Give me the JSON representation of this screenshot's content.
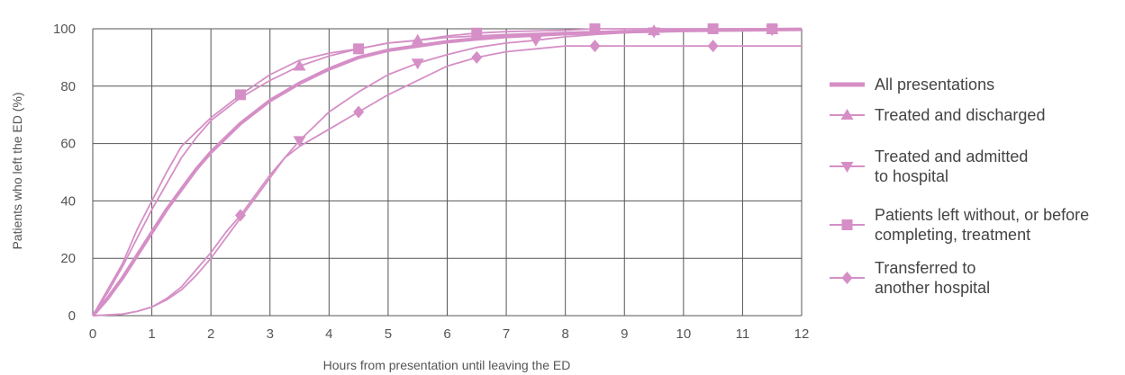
{
  "chart_data": {
    "type": "line",
    "xlabel": "Hours from presentation until leaving the ED",
    "ylabel": "Patients who left the ED (%)",
    "xlim": [
      0,
      12
    ],
    "ylim": [
      0,
      100
    ],
    "x_ticks": [
      "0",
      "1",
      "2",
      "3",
      "4",
      "5",
      "6",
      "7",
      "8",
      "9",
      "10",
      "11",
      "12"
    ],
    "y_ticks": [
      "0",
      "20",
      "40",
      "60",
      "80",
      "100"
    ],
    "grid": true,
    "legend_position": "right",
    "series": [
      {
        "name": "All presentations",
        "marker": "none",
        "emphasis": "thick",
        "points": [
          [
            0,
            0
          ],
          [
            0.25,
            6
          ],
          [
            0.5,
            13
          ],
          [
            0.75,
            21
          ],
          [
            1,
            29
          ],
          [
            1.25,
            37
          ],
          [
            1.5,
            44
          ],
          [
            1.75,
            51
          ],
          [
            2,
            57
          ],
          [
            2.5,
            67
          ],
          [
            3,
            75
          ],
          [
            3.5,
            81
          ],
          [
            4,
            86
          ],
          [
            4.5,
            90
          ],
          [
            5,
            92.5
          ],
          [
            5.5,
            94
          ],
          [
            6,
            95.5
          ],
          [
            6.5,
            96.5
          ],
          [
            7,
            97.3
          ],
          [
            8,
            98.3
          ],
          [
            9,
            99
          ],
          [
            10,
            99.4
          ],
          [
            11,
            99.6
          ],
          [
            12,
            99.8
          ]
        ]
      },
      {
        "name": "Treated and discharged",
        "marker": "triangle-up",
        "marker_x": [
          3.5,
          5.5,
          9.5,
          11.5
        ],
        "points": [
          [
            0,
            0
          ],
          [
            0.25,
            8
          ],
          [
            0.5,
            17
          ],
          [
            0.75,
            27
          ],
          [
            1,
            37
          ],
          [
            1.25,
            46
          ],
          [
            1.5,
            55
          ],
          [
            1.75,
            62
          ],
          [
            2,
            68
          ],
          [
            2.5,
            76
          ],
          [
            3,
            82
          ],
          [
            3.5,
            87
          ],
          [
            4,
            90.5
          ],
          [
            4.5,
            93
          ],
          [
            5,
            95
          ],
          [
            5.5,
            96
          ],
          [
            6,
            97
          ],
          [
            7,
            98
          ],
          [
            8,
            98.7
          ],
          [
            9,
            99.2
          ],
          [
            10,
            99.5
          ],
          [
            11,
            99.7
          ],
          [
            12,
            99.8
          ]
        ]
      },
      {
        "name": "Treated and admitted to hospital",
        "legend_lines": [
          "Treated and admitted",
          "to hospital"
        ],
        "marker": "triangle-down",
        "marker_x": [
          3.5,
          5.5,
          7.5,
          9.5,
          11.5
        ],
        "points": [
          [
            0,
            0
          ],
          [
            0.5,
            0.5
          ],
          [
            0.75,
            1.5
          ],
          [
            1,
            3
          ],
          [
            1.25,
            5.5
          ],
          [
            1.5,
            9
          ],
          [
            1.75,
            14
          ],
          [
            2,
            20
          ],
          [
            2.25,
            27
          ],
          [
            2.5,
            34
          ],
          [
            2.75,
            41
          ],
          [
            3,
            48
          ],
          [
            3.25,
            55
          ],
          [
            3.5,
            61
          ],
          [
            3.75,
            66
          ],
          [
            4,
            71
          ],
          [
            4.5,
            78
          ],
          [
            5,
            84
          ],
          [
            5.5,
            88
          ],
          [
            6,
            91
          ],
          [
            6.5,
            93.5
          ],
          [
            7,
            95
          ],
          [
            7.5,
            96
          ],
          [
            8,
            97.2
          ],
          [
            8.5,
            98
          ],
          [
            9,
            98.6
          ],
          [
            10,
            99.2
          ],
          [
            11,
            99.5
          ],
          [
            12,
            99.7
          ]
        ]
      },
      {
        "name": "Patients left without, or before completing, treatment",
        "legend_lines": [
          "Patients left without, or before",
          "completing, treatment"
        ],
        "marker": "square",
        "marker_x": [
          2.5,
          4.5,
          6.5,
          8.5,
          10.5,
          11.5
        ],
        "points": [
          [
            0,
            0
          ],
          [
            0.25,
            9
          ],
          [
            0.5,
            18
          ],
          [
            0.75,
            30
          ],
          [
            1,
            40
          ],
          [
            1.25,
            50
          ],
          [
            1.5,
            59
          ],
          [
            1.75,
            64
          ],
          [
            2,
            69
          ],
          [
            2.5,
            77
          ],
          [
            3,
            84
          ],
          [
            3.5,
            89
          ],
          [
            4,
            91.5
          ],
          [
            4.5,
            93
          ],
          [
            5,
            95
          ],
          [
            5.5,
            96
          ],
          [
            6,
            97.5
          ],
          [
            6.5,
            98.5
          ],
          [
            7,
            99
          ],
          [
            8,
            99.5
          ],
          [
            8.5,
            100
          ],
          [
            9,
            100
          ],
          [
            10,
            100
          ],
          [
            11,
            100
          ],
          [
            12,
            100
          ]
        ]
      },
      {
        "name": "Transferred to another hospital",
        "legend_lines": [
          "Transferred to",
          "another hospital"
        ],
        "marker": "diamond",
        "marker_x": [
          2.5,
          4.5,
          6.5,
          8.5,
          10.5
        ],
        "points": [
          [
            0,
            0
          ],
          [
            0.5,
            0.5
          ],
          [
            0.75,
            1.5
          ],
          [
            1,
            3
          ],
          [
            1.25,
            6
          ],
          [
            1.5,
            10
          ],
          [
            1.75,
            16
          ],
          [
            2,
            22
          ],
          [
            2.25,
            29
          ],
          [
            2.5,
            35
          ],
          [
            2.75,
            42
          ],
          [
            3,
            49
          ],
          [
            3.25,
            55
          ],
          [
            3.5,
            59
          ],
          [
            4,
            65
          ],
          [
            4.5,
            71
          ],
          [
            5,
            77
          ],
          [
            5.5,
            82
          ],
          [
            6,
            87
          ],
          [
            6.5,
            90
          ],
          [
            7,
            92
          ],
          [
            7.5,
            93
          ],
          [
            8,
            94
          ],
          [
            8.5,
            94
          ],
          [
            9,
            94
          ],
          [
            10,
            94
          ],
          [
            11,
            94
          ],
          [
            12,
            94
          ]
        ]
      }
    ]
  },
  "colors": {
    "series": "#d58fc6",
    "grid": "#555555",
    "text": "#555555"
  }
}
